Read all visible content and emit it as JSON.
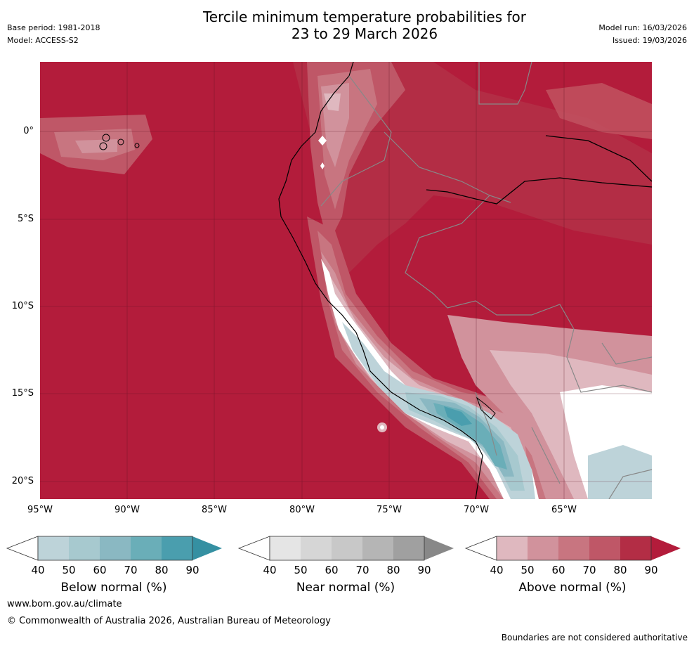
{
  "header": {
    "title_line1": "Tercile minimum temperature probabilities for",
    "title_line2": "23 to 29 March 2026",
    "base_period": "Base period: 1981-2018",
    "model": "Model: ACCESS-S2",
    "model_run": "Model run: 16/03/2026",
    "issued": "Issued: 19/03/2026"
  },
  "map": {
    "lat_labels": [
      "0°",
      "5°S",
      "10°S",
      "15°S",
      "20°S"
    ],
    "lon_labels": [
      "95°W",
      "90°W",
      "85°W",
      "80°W",
      "75°W",
      "70°W",
      "65°W"
    ],
    "dominant_category": "Above normal",
    "dominant_probability": "90%+"
  },
  "legends": [
    {
      "name": "below",
      "label": "Below normal (%)",
      "ticks": [
        "40",
        "50",
        "60",
        "70",
        "80",
        "90"
      ],
      "colors": [
        "#ffffff",
        "#bdd3d9",
        "#a7c9cf",
        "#8ab8c2",
        "#6aaeb8",
        "#4a9eae",
        "#3590a2"
      ]
    },
    {
      "name": "near",
      "label": "Near normal (%)",
      "ticks": [
        "40",
        "50",
        "60",
        "70",
        "80",
        "90"
      ],
      "colors": [
        "#ffffff",
        "#e5e5e5",
        "#d6d6d6",
        "#c8c8c8",
        "#b5b5b5",
        "#a0a0a0",
        "#888888"
      ]
    },
    {
      "name": "above",
      "label": "Above normal (%)",
      "ticks": [
        "40",
        "50",
        "60",
        "70",
        "80",
        "90"
      ],
      "colors": [
        "#ffffff",
        "#dfb8bf",
        "#d1929c",
        "#c87580",
        "#bf5767",
        "#b32d45",
        "#b31c3b"
      ]
    }
  ],
  "footer": {
    "website": "www.bom.gov.au/climate",
    "copyright": "© Commonwealth of Australia 2026, Australian Bureau of Meteorology",
    "disclaimer": "Boundaries are not considered authoritative"
  }
}
